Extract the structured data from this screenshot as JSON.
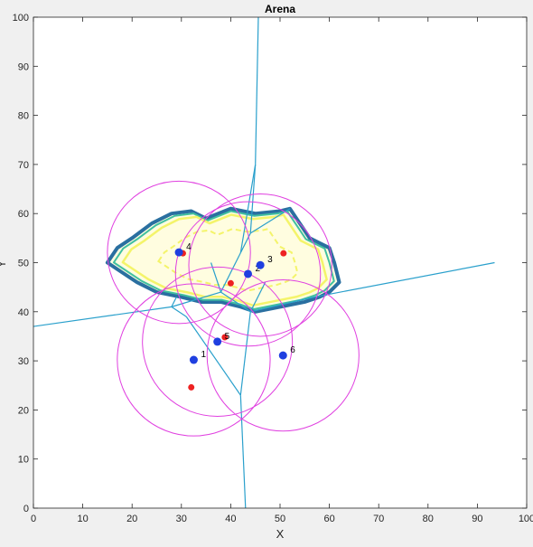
{
  "chart_data": {
    "type": "scatter",
    "title": "Arena",
    "xlabel": "X",
    "ylabel": "Y",
    "xlim": [
      0,
      100
    ],
    "ylim": [
      0,
      100
    ],
    "xticks": [
      "0",
      "10",
      "20",
      "30",
      "40",
      "50",
      "60",
      "70",
      "80",
      "90",
      "100"
    ],
    "yticks": [
      "0",
      "10",
      "20",
      "30",
      "40",
      "50",
      "60",
      "70",
      "80",
      "90",
      "100"
    ],
    "grid": false,
    "colors": {
      "agents": "#1f3fe0",
      "targets": "#ee2222",
      "circles": "#e040e0",
      "voronoi": "#2aa0cc",
      "contour_outer": "#2a6fa0",
      "contour_mid": "#40c0a0",
      "contour_inner": "#f4f46a"
    },
    "agents": [
      {
        "label": "1",
        "x": 32.5,
        "y": 30.2
      },
      {
        "label": "2",
        "x": 43.5,
        "y": 47.7
      },
      {
        "label": "3",
        "x": 46.0,
        "y": 49.5
      },
      {
        "label": "4",
        "x": 29.5,
        "y": 52.1
      },
      {
        "label": "5",
        "x": 37.3,
        "y": 33.9
      },
      {
        "label": "6",
        "x": 50.6,
        "y": 31.1
      }
    ],
    "targets": [
      {
        "x": 30.3,
        "y": 51.9
      },
      {
        "x": 50.7,
        "y": 51.9
      },
      {
        "x": 40.0,
        "y": 45.8
      },
      {
        "x": 38.8,
        "y": 34.8
      },
      {
        "x": 32.0,
        "y": 24.6
      }
    ],
    "circles": [
      {
        "cx": 32.5,
        "cy": 30.2,
        "r": 15.5
      },
      {
        "cx": 43.5,
        "cy": 47.7,
        "r": 14.7
      },
      {
        "cx": 46.0,
        "cy": 49.5,
        "r": 14.5
      },
      {
        "cx": 29.5,
        "cy": 52.1,
        "r": 14.5
      },
      {
        "cx": 37.3,
        "cy": 33.9,
        "r": 15.2
      },
      {
        "cx": 50.6,
        "cy": 31.1,
        "r": 15.4
      }
    ],
    "voronoi_edges": [
      [
        [
          0,
          37
        ],
        [
          28,
          41
        ]
      ],
      [
        [
          28,
          41
        ],
        [
          38,
          44
        ]
      ],
      [
        [
          28,
          41
        ],
        [
          29,
          43
        ]
      ],
      [
        [
          28,
          41
        ],
        [
          31,
          39
        ]
      ],
      [
        [
          31,
          39
        ],
        [
          42,
          23
        ]
      ],
      [
        [
          42,
          23
        ],
        [
          43,
          0
        ]
      ],
      [
        [
          42,
          23
        ],
        [
          44,
          40
        ]
      ],
      [
        [
          44,
          40
        ],
        [
          57,
          43
        ]
      ],
      [
        [
          57,
          43
        ],
        [
          93.5,
          50
        ]
      ],
      [
        [
          38,
          44
        ],
        [
          44,
          40
        ]
      ],
      [
        [
          38,
          44
        ],
        [
          42,
          52
        ]
      ],
      [
        [
          42,
          52
        ],
        [
          44,
          56
        ]
      ],
      [
        [
          44,
          56
        ],
        [
          52,
          61
        ]
      ],
      [
        [
          42,
          52
        ],
        [
          45,
          70
        ]
      ],
      [
        [
          45,
          70
        ],
        [
          45.6,
          100
        ]
      ],
      [
        [
          44,
          56
        ],
        [
          45,
          70
        ]
      ],
      [
        [
          38,
          44
        ],
        [
          36,
          50
        ]
      ],
      [
        [
          44,
          40
        ],
        [
          47,
          46
        ]
      ]
    ],
    "contour": [
      [
        15,
        50
      ],
      [
        17,
        53
      ],
      [
        20,
        55
      ],
      [
        24,
        58
      ],
      [
        28,
        60
      ],
      [
        32,
        60.5
      ],
      [
        35,
        59
      ],
      [
        40,
        61
      ],
      [
        45,
        60
      ],
      [
        50,
        60.5
      ],
      [
        52,
        61
      ],
      [
        54,
        58
      ],
      [
        56,
        55
      ],
      [
        58,
        54
      ],
      [
        60,
        53
      ],
      [
        61,
        50
      ],
      [
        62,
        46
      ],
      [
        60,
        44
      ],
      [
        58,
        43
      ],
      [
        55,
        42
      ],
      [
        50,
        41
      ],
      [
        45,
        40
      ],
      [
        42,
        41
      ],
      [
        38,
        42
      ],
      [
        34,
        42
      ],
      [
        30,
        43
      ],
      [
        25,
        44
      ],
      [
        21,
        46
      ],
      [
        18,
        48
      ]
    ]
  }
}
